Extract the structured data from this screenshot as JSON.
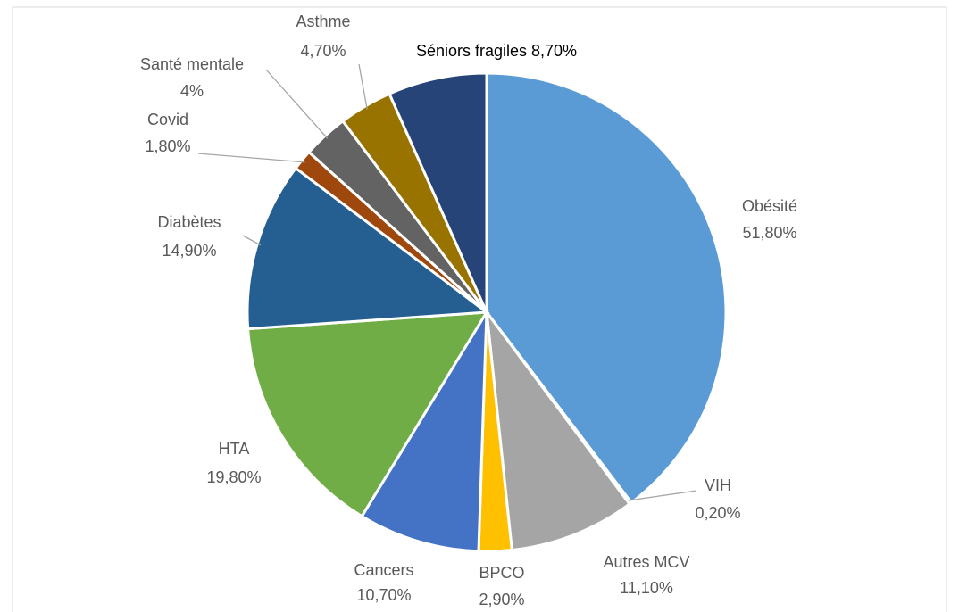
{
  "chart_data": {
    "type": "pie",
    "categories": [
      "Obésité",
      "VIH",
      "Autres MCV",
      "BPCO",
      "Cancers",
      "HTA",
      "Diabètes",
      "Covid",
      "Santé mentale",
      "Asthme",
      "Séniors fragiles"
    ],
    "values": [
      51.8,
      0.2,
      11.1,
      2.9,
      10.7,
      19.8,
      14.9,
      1.8,
      4,
      4.7,
      8.7
    ],
    "value_labels": [
      "51,80%",
      "0,20%",
      "11,10%",
      "2,90%",
      "10,70%",
      "19,80%",
      "14,90%",
      "1,80%",
      "4%",
      "4,70%",
      "8,70%"
    ],
    "colors": [
      "#5b9bd5",
      "#ed7d31",
      "#a5a5a5",
      "#ffc000",
      "#4472c4",
      "#70ad47",
      "#255e91",
      "#9e480e",
      "#636363",
      "#997300",
      "#264478"
    ]
  }
}
